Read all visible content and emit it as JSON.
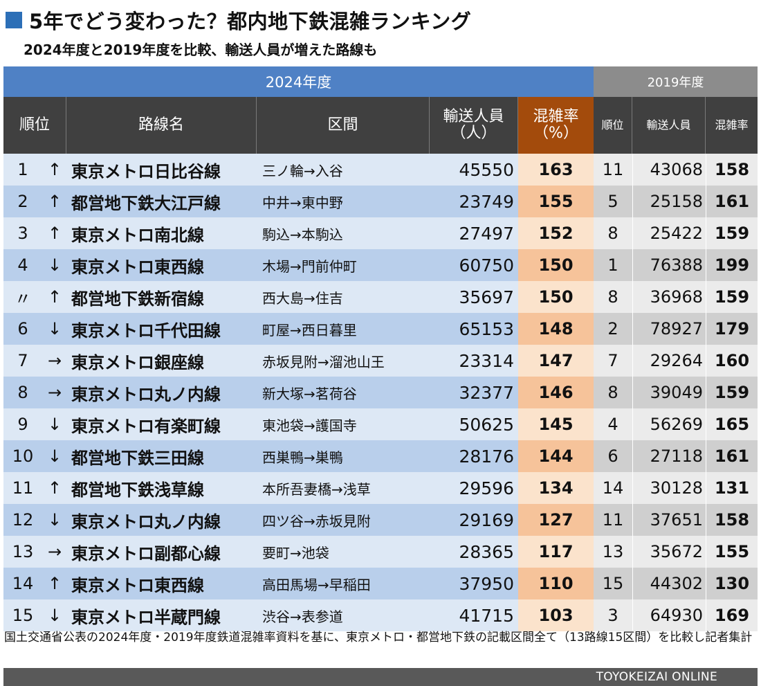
{
  "title": "5年でどう変わった？都内地下鉄混雑ランキング",
  "subtitle": "2024年度と2019年度を比較、輸送人員が増えた路線も",
  "group_2024": "2024年度",
  "group_2019": "2019年度",
  "headers": {
    "rank": "順位",
    "line": "路線名",
    "section": "区間",
    "passengers_line1": "輸送人員",
    "passengers_line2": "（人）",
    "congestion_line1": "混雑率",
    "congestion_line2": "（%）",
    "rank_2019": "順位",
    "passengers_2019": "輸送人員",
    "congestion_2019": "混雑率"
  },
  "rows": [
    {
      "rank": "1",
      "arrow": "↑",
      "line": "東京メトロ日比谷線",
      "section": "三ノ輪→入谷",
      "passengers": "45550",
      "congestion": "163",
      "rank_2019": "11",
      "passengers_2019": "43068",
      "congestion_2019": "158"
    },
    {
      "rank": "2",
      "arrow": "↑",
      "line": "都営地下鉄大江戸線",
      "section": "中井→東中野",
      "passengers": "23749",
      "congestion": "155",
      "rank_2019": "5",
      "passengers_2019": "25158",
      "congestion_2019": "161"
    },
    {
      "rank": "3",
      "arrow": "↑",
      "line": "東京メトロ南北線",
      "section": "駒込→本駒込",
      "passengers": "27497",
      "congestion": "152",
      "rank_2019": "8",
      "passengers_2019": "25422",
      "congestion_2019": "159"
    },
    {
      "rank": "4",
      "arrow": "↓",
      "line": "東京メトロ東西線",
      "section": "木場→門前仲町",
      "passengers": "60750",
      "congestion": "150",
      "rank_2019": "1",
      "passengers_2019": "76388",
      "congestion_2019": "199"
    },
    {
      "rank": "〃",
      "arrow": "↑",
      "line": "都営地下鉄新宿線",
      "section": "西大島→住吉",
      "passengers": "35697",
      "congestion": "150",
      "rank_2019": "8",
      "passengers_2019": "36968",
      "congestion_2019": "159"
    },
    {
      "rank": "6",
      "arrow": "↓",
      "line": "東京メトロ千代田線",
      "section": "町屋→西日暮里",
      "passengers": "65153",
      "congestion": "148",
      "rank_2019": "2",
      "passengers_2019": "78927",
      "congestion_2019": "179"
    },
    {
      "rank": "7",
      "arrow": "→",
      "line": "東京メトロ銀座線",
      "section": "赤坂見附→溜池山王",
      "passengers": "23314",
      "congestion": "147",
      "rank_2019": "7",
      "passengers_2019": "29264",
      "congestion_2019": "160"
    },
    {
      "rank": "8",
      "arrow": "→",
      "line": "東京メトロ丸ノ内線",
      "section": "新大塚→茗荷谷",
      "passengers": "32377",
      "congestion": "146",
      "rank_2019": "8",
      "passengers_2019": "39049",
      "congestion_2019": "159"
    },
    {
      "rank": "9",
      "arrow": "↓",
      "line": "東京メトロ有楽町線",
      "section": "東池袋→護国寺",
      "passengers": "50625",
      "congestion": "145",
      "rank_2019": "4",
      "passengers_2019": "56269",
      "congestion_2019": "165"
    },
    {
      "rank": "10",
      "arrow": "↓",
      "line": "都営地下鉄三田線",
      "section": "西巣鴨→巣鴨",
      "passengers": "28176",
      "congestion": "144",
      "rank_2019": "6",
      "passengers_2019": "27118",
      "congestion_2019": "161"
    },
    {
      "rank": "11",
      "arrow": "↑",
      "line": "都営地下鉄浅草線",
      "section": "本所吾妻橋→浅草",
      "passengers": "29596",
      "congestion": "134",
      "rank_2019": "14",
      "passengers_2019": "30128",
      "congestion_2019": "131"
    },
    {
      "rank": "12",
      "arrow": "↓",
      "line": "東京メトロ丸ノ内線",
      "section": "四ツ谷→赤坂見附",
      "passengers": "29169",
      "congestion": "127",
      "rank_2019": "11",
      "passengers_2019": "37651",
      "congestion_2019": "158"
    },
    {
      "rank": "13",
      "arrow": "→",
      "line": "東京メトロ副都心線",
      "section": "要町→池袋",
      "passengers": "28365",
      "congestion": "117",
      "rank_2019": "13",
      "passengers_2019": "35672",
      "congestion_2019": "155"
    },
    {
      "rank": "14",
      "arrow": "↑",
      "line": "東京メトロ東西線",
      "section": "高田馬場→早稲田",
      "passengers": "37950",
      "congestion": "110",
      "rank_2019": "15",
      "passengers_2019": "44302",
      "congestion_2019": "130"
    },
    {
      "rank": "15",
      "arrow": "↓",
      "line": "東京メトロ半蔵門線",
      "section": "渋谷→表参道",
      "passengers": "41715",
      "congestion": "103",
      "rank_2019": "3",
      "passengers_2019": "64930",
      "congestion_2019": "169"
    }
  ],
  "note": "国土交通省公表の2024年度・2019年度鉄道混雑率資料を基に、東京メトロ・都営地下鉄の記載区間全て（13路線15区間）を比較し記者集計",
  "footer": "TOYOKEIZAI ONLINE",
  "colors": {
    "accent_blue": "#4f81c5",
    "header_dark": "#404040",
    "header_congestion": "#a34b0c",
    "header_2019": "#8c8c8c"
  }
}
